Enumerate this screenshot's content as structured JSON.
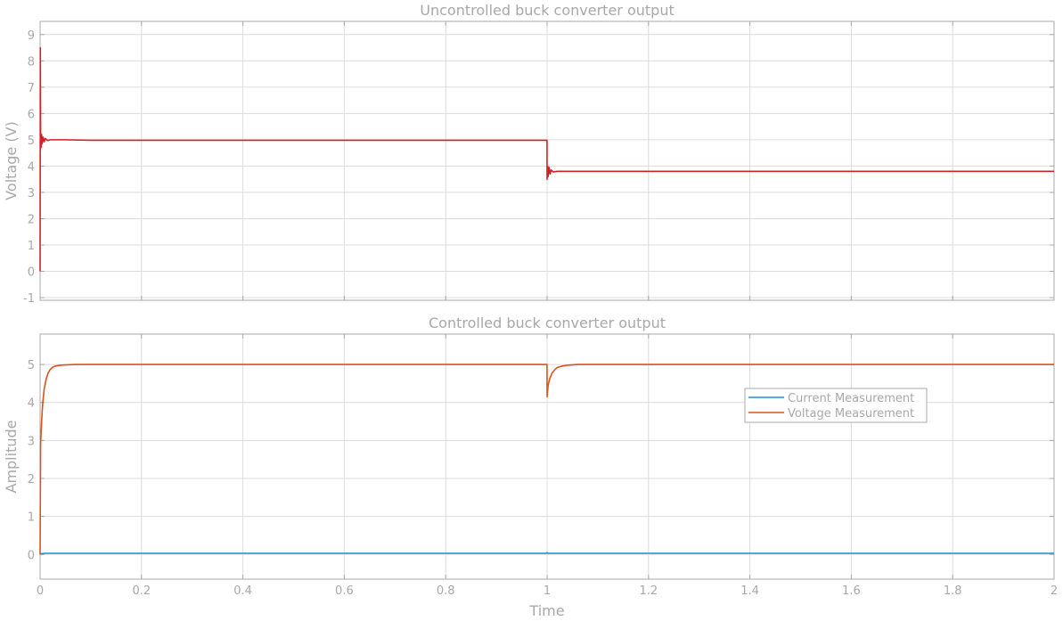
{
  "chart_data": [
    {
      "type": "line",
      "title": "Uncontrolled buck converter output",
      "xlabel": "",
      "ylabel": "Voltage (V)",
      "xlim": [
        0,
        2
      ],
      "ylim": [
        -1.1,
        9.5
      ],
      "xticks": [
        0,
        0.2,
        0.4,
        0.6,
        0.8,
        1,
        1.2,
        1.4,
        1.6,
        1.8,
        2
      ],
      "yticks": [
        -1,
        0,
        1,
        2,
        3,
        4,
        5,
        6,
        7,
        8,
        9
      ],
      "show_xtick_labels": false,
      "grid": true,
      "colors": {
        "series": "#d0202a",
        "grid": "#dcdcdc",
        "axes": "#a8a8a8",
        "text": "#a8a8a8"
      },
      "series": [
        {
          "x": [
            0,
            0.0005,
            0.001,
            0.002,
            0.003,
            0.004,
            0.006,
            0.008,
            0.01,
            0.015,
            0.02,
            0.05,
            0.1,
            0.5,
            0.9999,
            1.0,
            1.001,
            1.002,
            1.004,
            1.006,
            1.008,
            1.012,
            1.02,
            1.05,
            1.5,
            2.0
          ],
          "y": [
            0,
            8.5,
            5.3,
            4.7,
            5.2,
            4.85,
            5.1,
            4.92,
            5.05,
            4.97,
            5.0,
            5.0,
            4.98,
            4.98,
            4.98,
            3.5,
            4.0,
            3.6,
            3.95,
            3.7,
            3.85,
            3.78,
            3.8,
            3.8,
            3.8,
            3.8
          ]
        }
      ]
    },
    {
      "type": "line",
      "title": "Controlled buck converter output",
      "xlabel": "Time",
      "ylabel": "Amplitude",
      "xlim": [
        0,
        2
      ],
      "ylim": [
        -0.65,
        5.8
      ],
      "xticks": [
        0,
        0.2,
        0.4,
        0.6,
        0.8,
        1,
        1.2,
        1.4,
        1.6,
        1.8,
        2
      ],
      "xtick_labels": [
        "0",
        "0.2",
        "0.4",
        "0.6",
        "0.8",
        "1",
        "1.2",
        "1.4",
        "1.6",
        "1.8",
        "2"
      ],
      "yticks": [
        0,
        1,
        2,
        3,
        4,
        5
      ],
      "grid": true,
      "legend": "center-right",
      "colors": {
        "grid": "#dcdcdc",
        "axes": "#a8a8a8",
        "text": "#a8a8a8"
      },
      "series": [
        {
          "name": "Current Measurement",
          "color": "#1f8fd6",
          "x": [
            0,
            0.002,
            0.01,
            0.5,
            0.999,
            1.0,
            1.002,
            1.5,
            2.0
          ],
          "y": [
            0,
            0.02,
            0.03,
            0.03,
            0.03,
            0.05,
            0.03,
            0.03,
            0.03
          ]
        },
        {
          "name": "Voltage Measurement",
          "color": "#d9531e",
          "x": [
            0,
            0.001,
            0.003,
            0.005,
            0.008,
            0.012,
            0.016,
            0.02,
            0.025,
            0.03,
            0.04,
            0.05,
            0.07,
            0.5,
            0.9999,
            1.0,
            1.002,
            1.005,
            1.01,
            1.015,
            1.02,
            1.03,
            1.04,
            1.06,
            1.5,
            2.0
          ],
          "y": [
            0,
            2.9,
            3.5,
            3.95,
            4.35,
            4.62,
            4.78,
            4.87,
            4.93,
            4.96,
            4.98,
            4.99,
            5.0,
            5.0,
            5.0,
            4.15,
            4.45,
            4.62,
            4.78,
            4.86,
            4.92,
            4.96,
            4.98,
            5.0,
            5.0,
            5.0
          ]
        }
      ]
    }
  ]
}
